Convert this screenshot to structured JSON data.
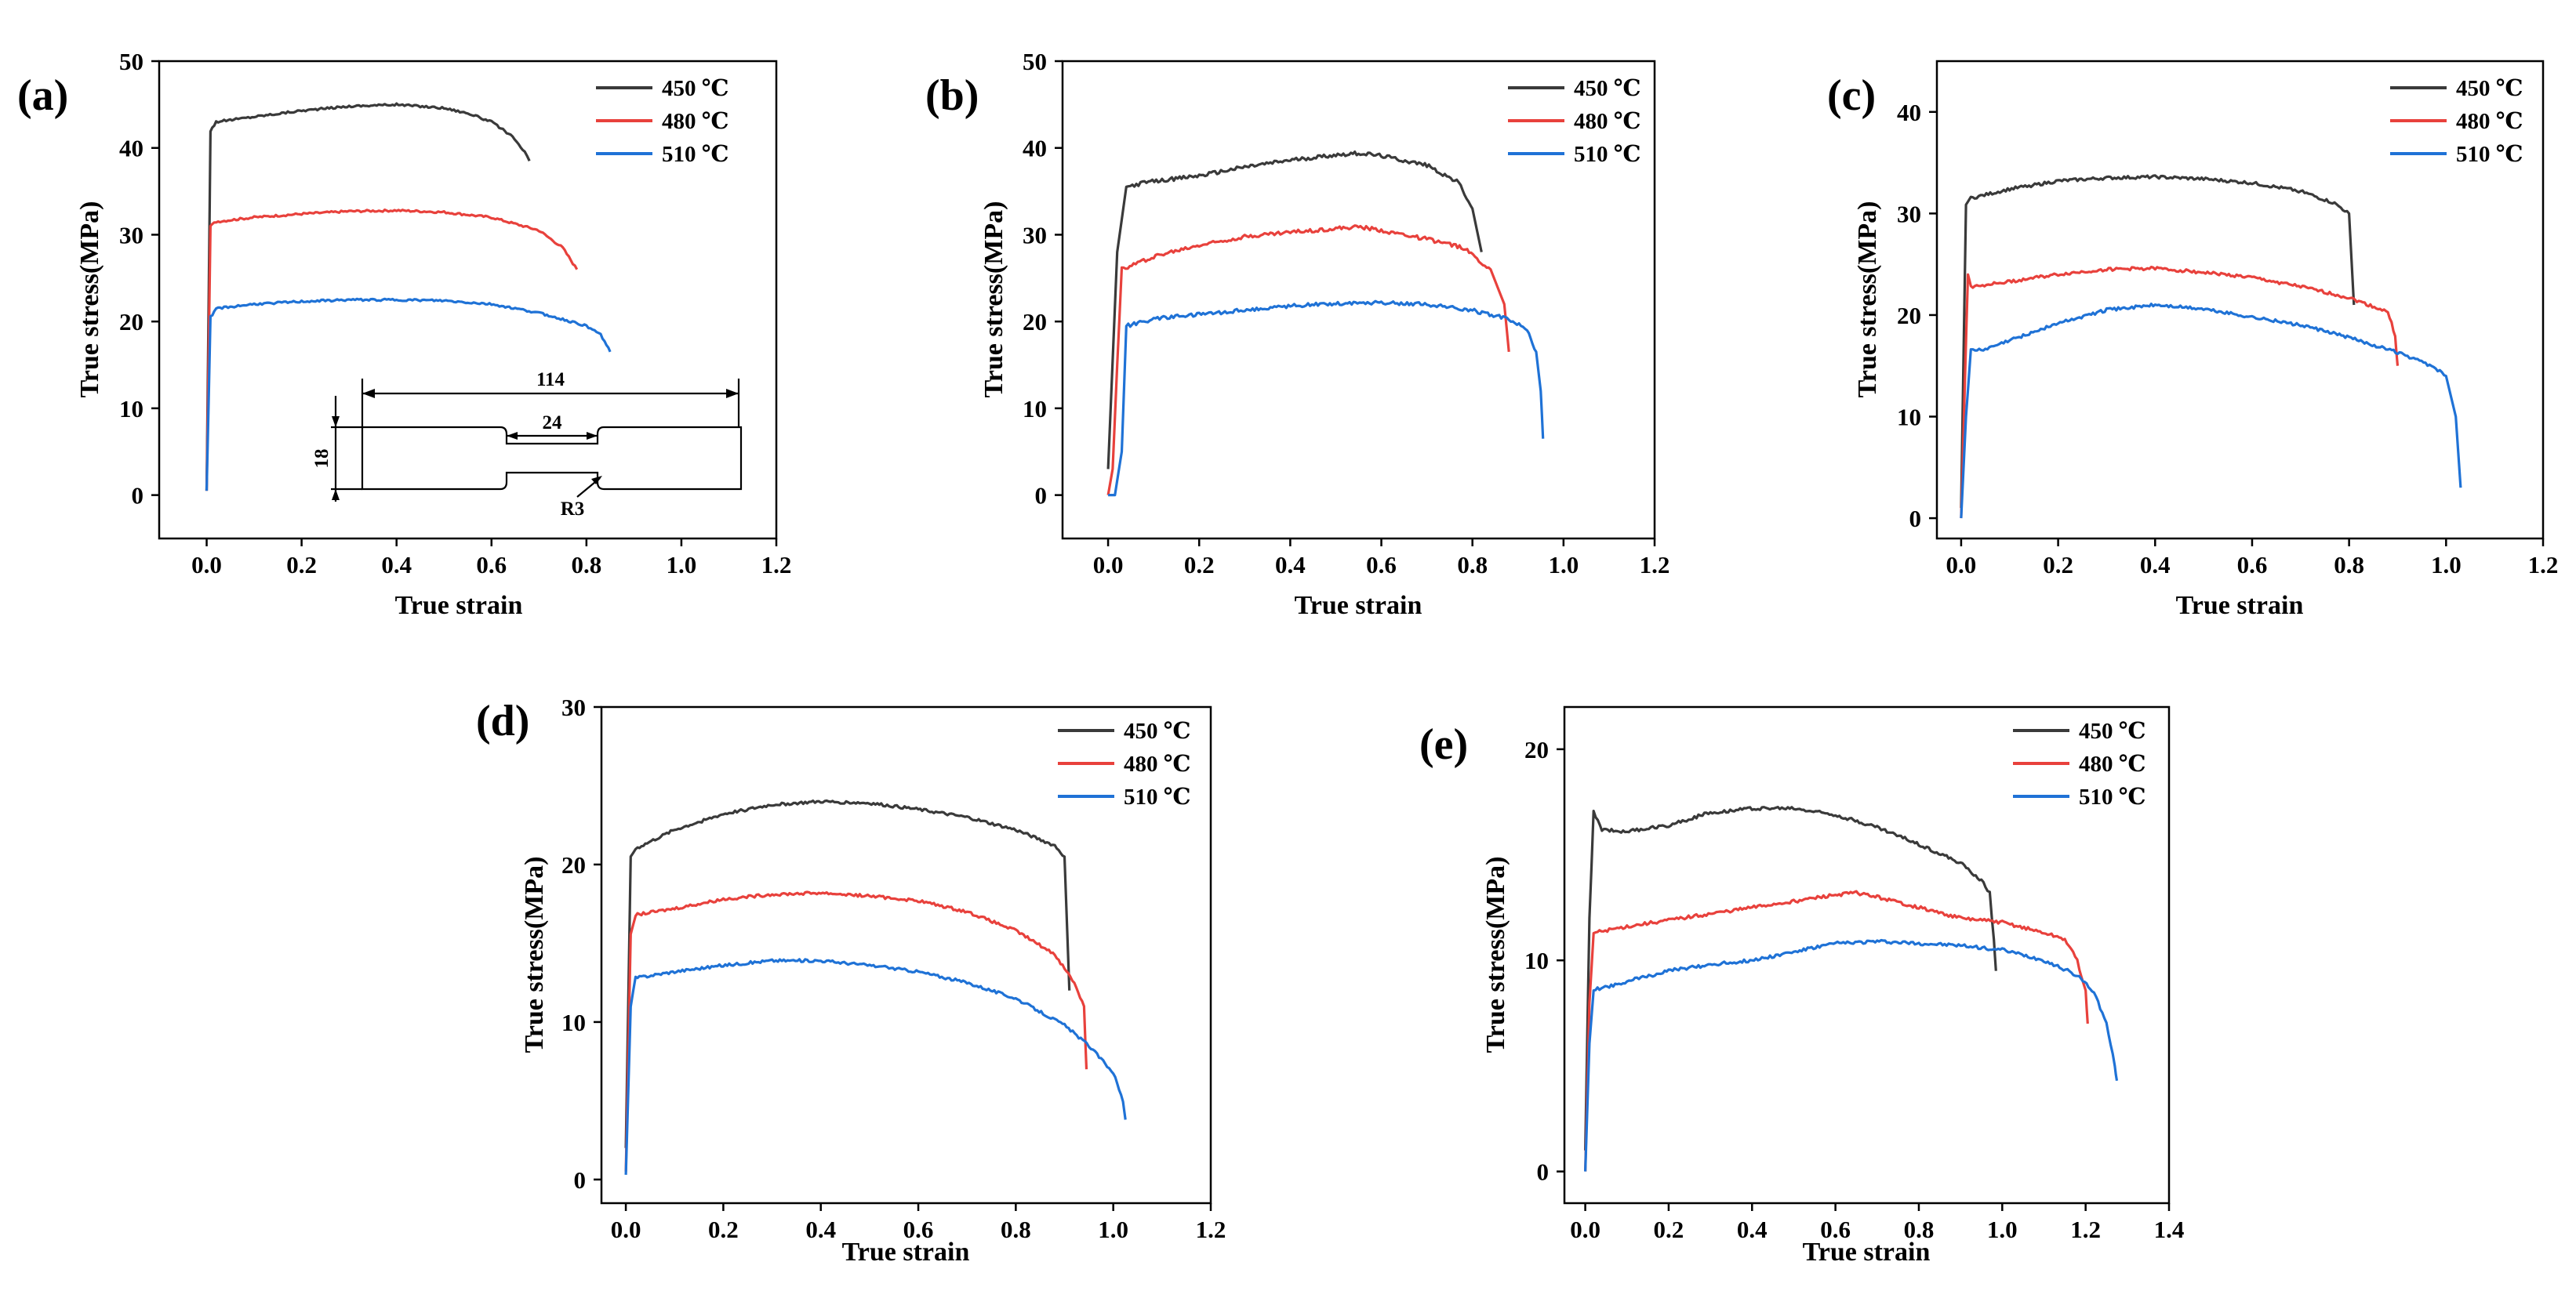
{
  "colors": {
    "s450": "#3a3a3a",
    "s480": "#e8413c",
    "s510": "#1f72d6"
  },
  "chart_data": [
    {
      "type": "line",
      "panel": "(a)",
      "xlabel": "True strain",
      "ylabel": "True stress(MPa)",
      "xlim": [
        -0.1,
        1.2
      ],
      "ylim": [
        -5,
        50
      ],
      "xticks": [
        0.0,
        0.2,
        0.4,
        0.6,
        0.8,
        1.0,
        1.2
      ],
      "yticks": [
        0,
        10,
        20,
        30,
        40,
        50
      ],
      "xtick_labels": [
        "0.0",
        "0.2",
        "0.4",
        "0.6",
        "0.8",
        "1.0",
        "1.2"
      ],
      "ytick_labels": [
        "0",
        "10",
        "20",
        "30",
        "40",
        "50"
      ],
      "inset": {
        "dims": [
          "114",
          "24",
          "18"
        ],
        "radius": "R3"
      },
      "series": [
        {
          "name": "450 ℃",
          "color": "s450",
          "x": [
            0.0,
            0.008,
            0.02,
            0.1,
            0.2,
            0.3,
            0.4,
            0.5,
            0.55,
            0.6,
            0.64,
            0.67,
            0.68
          ],
          "y": [
            0.5,
            42,
            43,
            43.6,
            44.3,
            44.8,
            45,
            44.6,
            44,
            43,
            41.5,
            39.5,
            38.5
          ]
        },
        {
          "name": "480 ℃",
          "color": "s480",
          "x": [
            0.0,
            0.008,
            0.02,
            0.1,
            0.2,
            0.3,
            0.4,
            0.5,
            0.6,
            0.7,
            0.75,
            0.78
          ],
          "y": [
            0.5,
            31,
            31.5,
            32,
            32.4,
            32.7,
            32.8,
            32.6,
            32,
            30.5,
            28.5,
            26
          ]
        },
        {
          "name": "510 ℃",
          "color": "s510",
          "x": [
            0.0,
            0.008,
            0.02,
            0.1,
            0.2,
            0.3,
            0.4,
            0.5,
            0.6,
            0.7,
            0.8,
            0.83,
            0.85
          ],
          "y": [
            0.5,
            20.5,
            21.5,
            22,
            22.3,
            22.5,
            22.5,
            22.4,
            22,
            21,
            19.5,
            18.5,
            16.5
          ]
        }
      ]
    },
    {
      "type": "line",
      "panel": "(b)",
      "xlabel": "True strain",
      "ylabel": "True stress(MPa)",
      "xlim": [
        -0.1,
        1.2
      ],
      "ylim": [
        -5,
        50
      ],
      "xticks": [
        0.0,
        0.2,
        0.4,
        0.6,
        0.8,
        1.0,
        1.2
      ],
      "yticks": [
        0,
        10,
        20,
        30,
        40,
        50
      ],
      "xtick_labels": [
        "0.0",
        "0.2",
        "0.4",
        "0.6",
        "0.8",
        "1.0",
        "1.2"
      ],
      "ytick_labels": [
        "0",
        "10",
        "20",
        "30",
        "40",
        "50"
      ],
      "series": [
        {
          "name": "450 ℃",
          "color": "s450",
          "x": [
            0.0,
            0.02,
            0.04,
            0.08,
            0.2,
            0.3,
            0.4,
            0.5,
            0.55,
            0.6,
            0.7,
            0.77,
            0.8,
            0.82
          ],
          "y": [
            3,
            28,
            35.5,
            36,
            36.8,
            37.8,
            38.6,
            39.2,
            39.4,
            39.1,
            38,
            36,
            33,
            28
          ]
        },
        {
          "name": "480 ℃",
          "color": "s480",
          "x": [
            0.0,
            0.01,
            0.02,
            0.03,
            0.1,
            0.2,
            0.3,
            0.4,
            0.5,
            0.55,
            0.6,
            0.7,
            0.78,
            0.84,
            0.87,
            0.88
          ],
          "y": [
            0,
            3,
            15,
            26,
            27.5,
            28.8,
            29.8,
            30.3,
            30.7,
            30.9,
            30.5,
            29.5,
            28.5,
            26,
            22,
            16.5
          ]
        },
        {
          "name": "510 ℃",
          "color": "s510",
          "x": [
            0.0,
            0.015,
            0.03,
            0.04,
            0.1,
            0.2,
            0.3,
            0.4,
            0.5,
            0.6,
            0.7,
            0.8,
            0.88,
            0.92,
            0.94,
            0.95,
            0.955
          ],
          "y": [
            0,
            0,
            5,
            19.5,
            20.3,
            20.8,
            21.3,
            21.8,
            22.1,
            22.2,
            22,
            21.3,
            20.3,
            19,
            16.5,
            12,
            6.5
          ]
        }
      ]
    },
    {
      "type": "line",
      "panel": "(c)",
      "xlabel": "True strain",
      "ylabel": "True stress(MPa)",
      "xlim": [
        -0.05,
        1.2
      ],
      "ylim": [
        -2,
        45
      ],
      "xticks": [
        0.0,
        0.2,
        0.4,
        0.6,
        0.8,
        1.0,
        1.2
      ],
      "yticks": [
        0,
        10,
        20,
        30,
        40
      ],
      "xtick_labels": [
        "0.0",
        "0.2",
        "0.4",
        "0.6",
        "0.8",
        "1.0",
        "1.2"
      ],
      "ytick_labels": [
        "0",
        "10",
        "20",
        "30",
        "40"
      ],
      "series": [
        {
          "name": "450 ℃",
          "color": "s450",
          "x": [
            0.0,
            0.01,
            0.02,
            0.1,
            0.2,
            0.3,
            0.4,
            0.5,
            0.6,
            0.7,
            0.77,
            0.8,
            0.81
          ],
          "y": [
            1,
            31,
            31.5,
            32.4,
            33.2,
            33.5,
            33.6,
            33.4,
            33,
            32.2,
            31,
            30,
            21
          ]
        },
        {
          "name": "480 ℃",
          "color": "s480",
          "x": [
            0.0,
            0.008,
            0.014,
            0.02,
            0.1,
            0.2,
            0.3,
            0.4,
            0.5,
            0.6,
            0.7,
            0.8,
            0.88,
            0.895,
            0.9
          ],
          "y": [
            0,
            14,
            24,
            22.8,
            23.3,
            24,
            24.5,
            24.6,
            24.2,
            23.7,
            22.8,
            21.7,
            20.3,
            18,
            15
          ]
        },
        {
          "name": "510 ℃",
          "color": "s510",
          "x": [
            0.0,
            0.01,
            0.02,
            0.05,
            0.1,
            0.2,
            0.3,
            0.4,
            0.5,
            0.6,
            0.7,
            0.8,
            0.9,
            0.97,
            1.0,
            1.02,
            1.03
          ],
          "y": [
            0,
            10,
            16.5,
            16.6,
            17.5,
            19.2,
            20.5,
            21,
            20.6,
            19.8,
            19,
            17.8,
            16.3,
            15,
            14,
            10,
            3
          ]
        }
      ]
    },
    {
      "type": "line",
      "panel": "(d)",
      "xlabel": "True strain",
      "ylabel": "True stress(MPa)",
      "xlim": [
        -0.05,
        1.2
      ],
      "ylim": [
        -1.5,
        30
      ],
      "xticks": [
        0.0,
        0.2,
        0.4,
        0.6,
        0.8,
        1.0,
        1.2
      ],
      "yticks": [
        0,
        10,
        20,
        30
      ],
      "xtick_labels": [
        "0.0",
        "0.2",
        "0.4",
        "0.6",
        "0.8",
        "1.0",
        "1.2"
      ],
      "ytick_labels": [
        "0",
        "10",
        "20",
        "30"
      ],
      "series": [
        {
          "name": "450 ℃",
          "color": "s450",
          "x": [
            0.0,
            0.01,
            0.02,
            0.1,
            0.2,
            0.3,
            0.4,
            0.5,
            0.6,
            0.7,
            0.8,
            0.88,
            0.9,
            0.91
          ],
          "y": [
            2,
            20.5,
            21,
            22.2,
            23.2,
            23.8,
            24,
            23.9,
            23.5,
            23,
            22.2,
            21.2,
            20.5,
            12
          ]
        },
        {
          "name": "480 ℃",
          "color": "s480",
          "x": [
            0.0,
            0.01,
            0.02,
            0.1,
            0.2,
            0.3,
            0.4,
            0.5,
            0.6,
            0.7,
            0.8,
            0.88,
            0.92,
            0.94,
            0.945
          ],
          "y": [
            0.5,
            15.5,
            16.8,
            17.2,
            17.8,
            18.1,
            18.2,
            18,
            17.7,
            17,
            15.8,
            14.3,
            12.5,
            11,
            7
          ]
        },
        {
          "name": "510 ℃",
          "color": "s510",
          "x": [
            0.0,
            0.01,
            0.02,
            0.1,
            0.2,
            0.3,
            0.4,
            0.5,
            0.6,
            0.7,
            0.8,
            0.9,
            0.95,
            1.0,
            1.02,
            1.025
          ],
          "y": [
            0.3,
            11,
            12.8,
            13.2,
            13.6,
            13.9,
            13.9,
            13.6,
            13.2,
            12.5,
            11.5,
            9.8,
            8.5,
            6.8,
            5,
            3.8
          ]
        }
      ]
    },
    {
      "type": "line",
      "panel": "(e)",
      "xlabel": "True strain",
      "ylabel": "True stress(MPa)",
      "xlim": [
        -0.05,
        1.4
      ],
      "ylim": [
        -1.5,
        22
      ],
      "xticks": [
        0.0,
        0.2,
        0.4,
        0.6,
        0.8,
        1.0,
        1.2,
        1.4
      ],
      "yticks": [
        0,
        10,
        20
      ],
      "xtick_labels": [
        "0.0",
        "0.2",
        "0.4",
        "0.6",
        "0.8",
        "1.0",
        "1.2",
        "1.4"
      ],
      "ytick_labels": [
        "0",
        "10",
        "20"
      ],
      "series": [
        {
          "name": "450 ℃",
          "color": "s450",
          "x": [
            0.0,
            0.01,
            0.02,
            0.04,
            0.1,
            0.2,
            0.3,
            0.4,
            0.5,
            0.6,
            0.7,
            0.8,
            0.9,
            0.95,
            0.97,
            0.98,
            0.985
          ],
          "y": [
            1,
            12,
            17,
            16.2,
            16.1,
            16.4,
            17,
            17.2,
            17.2,
            16.9,
            16.3,
            15.5,
            14.6,
            13.8,
            13.2,
            11,
            9.5
          ]
        },
        {
          "name": "480 ℃",
          "color": "s480",
          "x": [
            0.0,
            0.01,
            0.02,
            0.1,
            0.2,
            0.3,
            0.4,
            0.5,
            0.6,
            0.65,
            0.7,
            0.8,
            0.9,
            1.0,
            1.1,
            1.15,
            1.18,
            1.2,
            1.205
          ],
          "y": [
            0,
            8,
            11.3,
            11.6,
            11.9,
            12.2,
            12.5,
            12.8,
            13.1,
            13.2,
            13,
            12.5,
            12,
            11.8,
            11.3,
            11,
            10,
            8.5,
            7
          ]
        },
        {
          "name": "510 ℃",
          "color": "s510",
          "x": [
            0.0,
            0.01,
            0.02,
            0.1,
            0.2,
            0.3,
            0.4,
            0.5,
            0.6,
            0.7,
            0.8,
            0.9,
            1.0,
            1.1,
            1.18,
            1.22,
            1.25,
            1.27,
            1.275
          ],
          "y": [
            0,
            6,
            8.6,
            9,
            9.5,
            9.8,
            10,
            10.4,
            10.8,
            10.9,
            10.8,
            10.7,
            10.5,
            10,
            9.3,
            8.5,
            7,
            5,
            4.3
          ]
        }
      ]
    }
  ]
}
